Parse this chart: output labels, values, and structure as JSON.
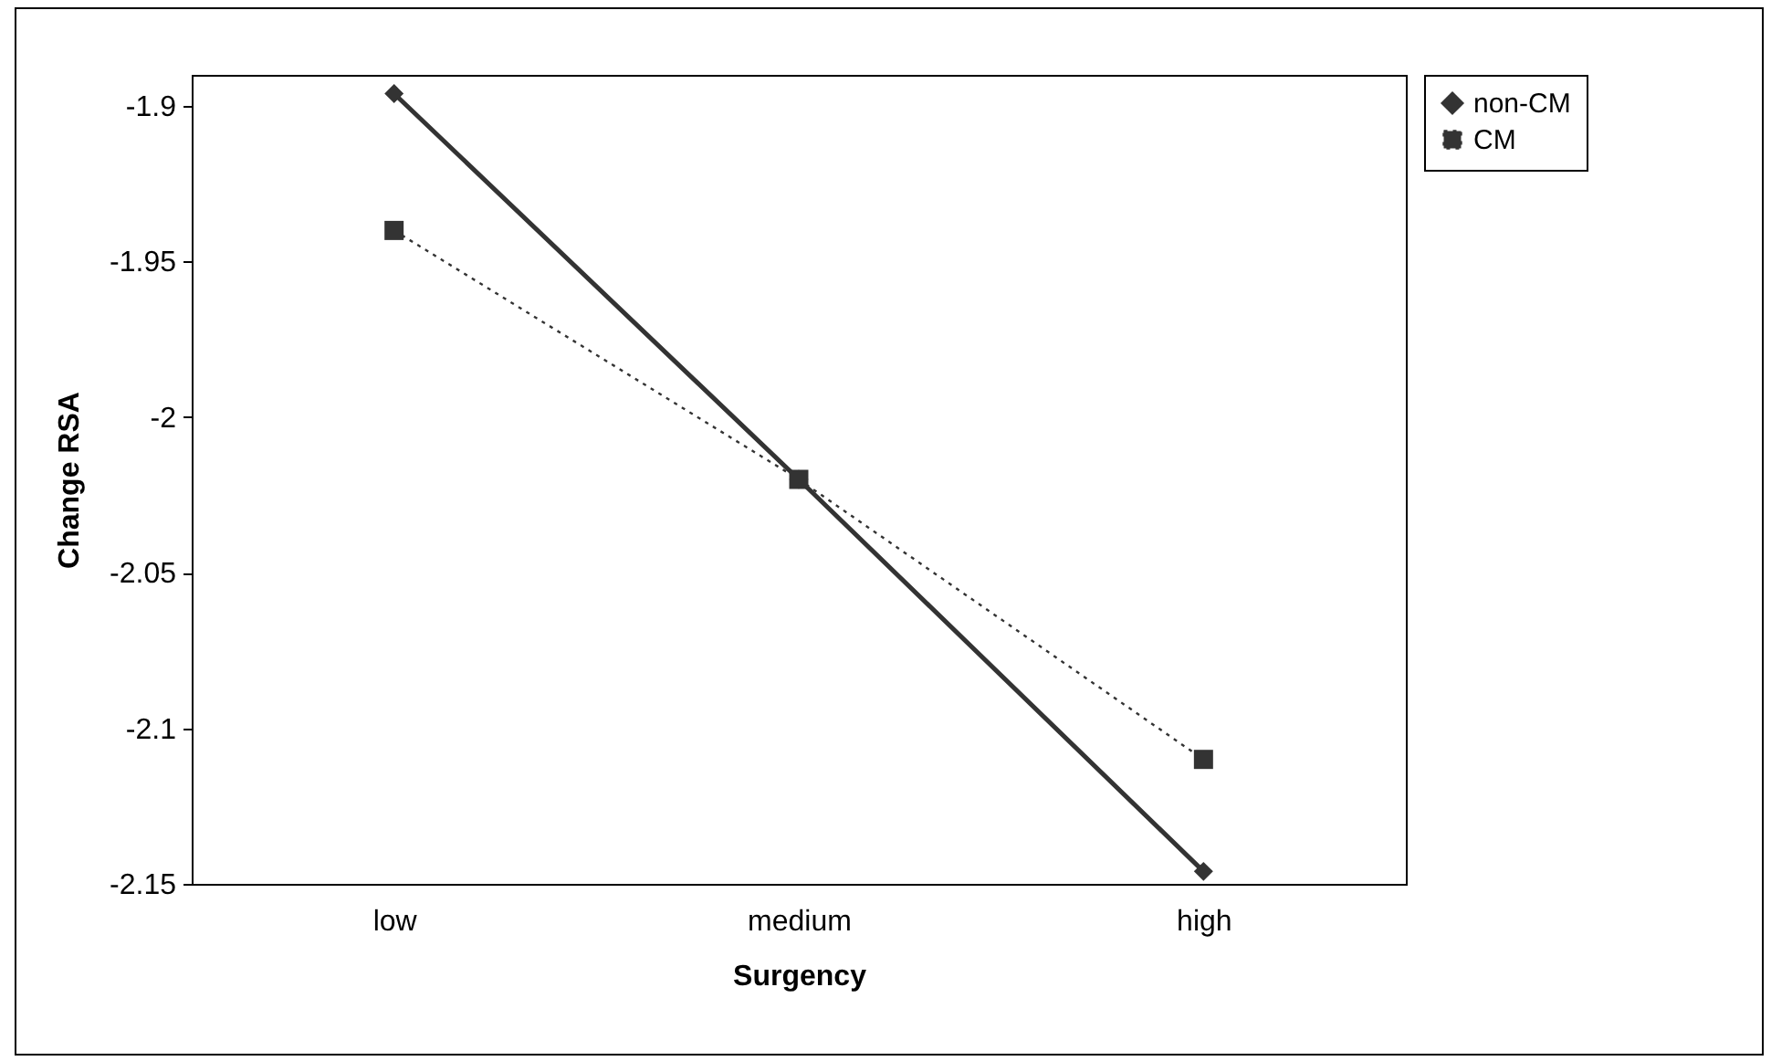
{
  "chart_data": {
    "type": "line",
    "xlabel": "Surgency",
    "ylabel": "Change RSA",
    "categories": [
      "low",
      "medium",
      "high"
    ],
    "series": [
      {
        "name": "non-CM",
        "color": "#333333",
        "values": [
          -1.896,
          -2.02,
          -2.146
        ],
        "marker": "diamond",
        "line_style": "solid"
      },
      {
        "name": "CM",
        "color": "#333333",
        "values": [
          -1.94,
          -2.02,
          -2.11
        ],
        "marker": "square",
        "line_style": "dotted"
      }
    ],
    "ylim": [
      -2.15,
      -1.89
    ],
    "yticks": [
      {
        "value": -1.9,
        "label": "-1.9"
      },
      {
        "value": -1.95,
        "label": "-1.95"
      },
      {
        "value": -2,
        "label": "-2"
      },
      {
        "value": -2.05,
        "label": "-2.05"
      },
      {
        "value": -2.1,
        "label": "-2.1"
      },
      {
        "value": -2.15,
        "label": "-2.15"
      }
    ],
    "grid": false,
    "legend": "right"
  }
}
